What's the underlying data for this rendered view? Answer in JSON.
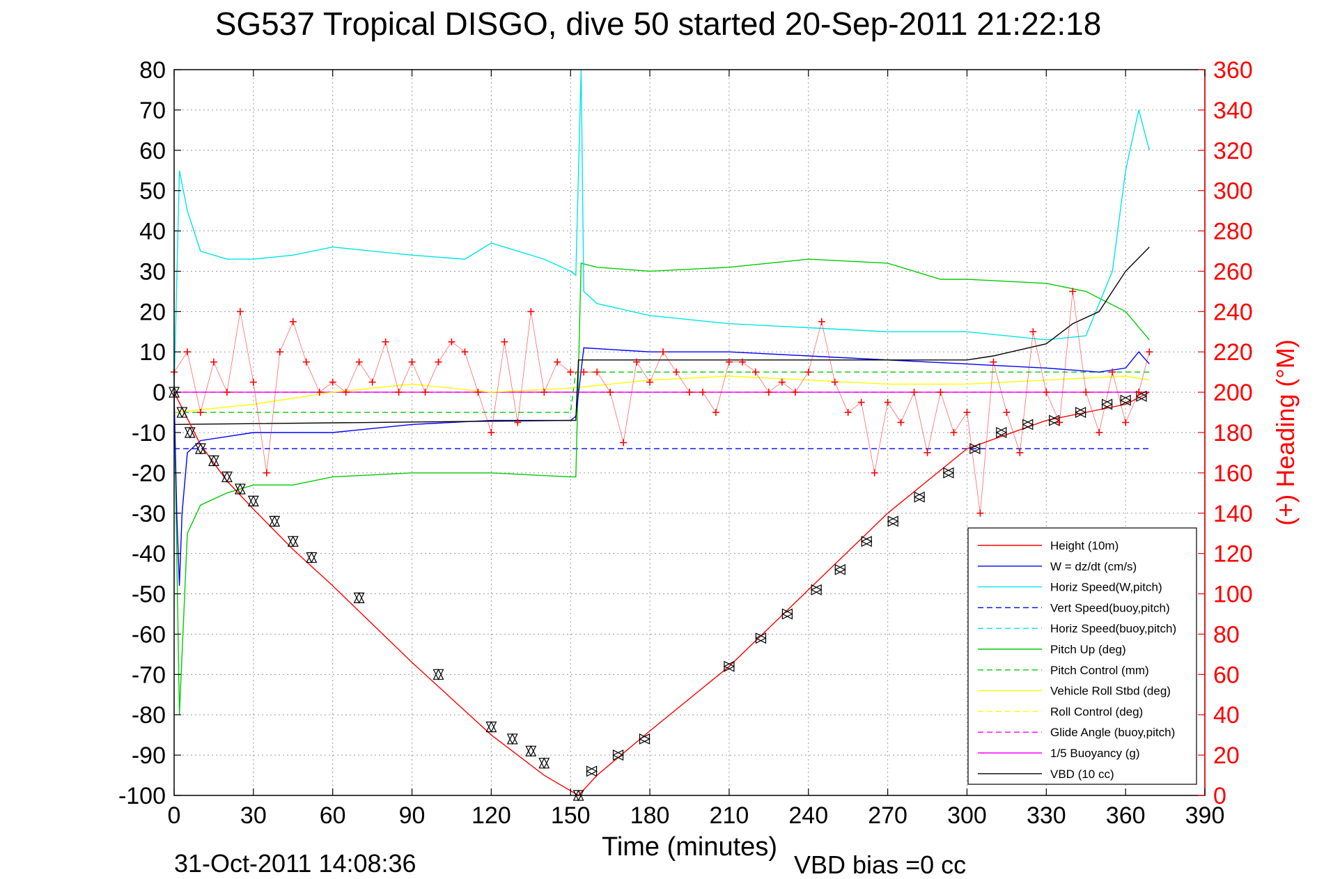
{
  "chart_data": {
    "type": "line",
    "title": "SG537 Tropical DISGO, dive 50 started 20-Sep-2011 21:22:18",
    "xlabel": "Time (minutes)",
    "ylabel_right": "(+) Heading (°M)",
    "footer_left": "31-Oct-2011 14:08:36",
    "footer_right": "VBD bias =0 cc",
    "xlim": [
      0,
      390
    ],
    "ylim": [
      -100,
      80
    ],
    "ylim_right": [
      0,
      360
    ],
    "xticks": [
      "0",
      "30",
      "60",
      "90",
      "120",
      "150",
      "180",
      "210",
      "240",
      "270",
      "300",
      "330",
      "360",
      "390"
    ],
    "yticks": [
      "80",
      "70",
      "60",
      "50",
      "40",
      "30",
      "20",
      "10",
      "0",
      "-10",
      "-20",
      "-30",
      "-40",
      "-50",
      "-60",
      "-70",
      "-80",
      "-90",
      "-100"
    ],
    "yticks_right": [
      "360",
      "340",
      "320",
      "300",
      "280",
      "260",
      "240",
      "220",
      "200",
      "180",
      "160",
      "140",
      "120",
      "100",
      "80",
      "60",
      "40",
      "20",
      "0"
    ],
    "grid": true,
    "legend_position": "bottom-right",
    "series": [
      {
        "name": "Height (10m)",
        "color": "#ff0000",
        "style": "solid",
        "x": [
          0,
          10,
          20,
          30,
          45,
          60,
          90,
          120,
          140,
          153,
          160,
          180,
          210,
          240,
          270,
          300,
          330,
          360,
          369
        ],
        "y": [
          0,
          -13,
          -22,
          -29,
          -39,
          -48,
          -67,
          -85,
          -95,
          -100,
          -95,
          -84,
          -68,
          -49,
          -30,
          -14,
          -7,
          -3,
          0
        ]
      },
      {
        "name": "W = dz/dt (cm/s)",
        "color": "#0000ff",
        "style": "solid",
        "x": [
          0,
          1,
          2,
          3,
          5,
          10,
          20,
          30,
          60,
          90,
          120,
          150,
          152,
          155,
          180,
          210,
          240,
          270,
          300,
          330,
          350,
          360,
          365,
          369
        ],
        "y": [
          0,
          -30,
          -48,
          -30,
          -15,
          -12,
          -11,
          -10,
          -10,
          -8,
          -7,
          -7,
          -6,
          11,
          10,
          10,
          9,
          8,
          7,
          6,
          5,
          6,
          10,
          7
        ]
      },
      {
        "name": "Horiz Speed(W,pitch)",
        "color": "#00e5e5",
        "style": "solid",
        "x": [
          0,
          2,
          5,
          10,
          20,
          30,
          45,
          60,
          90,
          110,
          120,
          140,
          150,
          152,
          154,
          155,
          160,
          180,
          210,
          240,
          270,
          300,
          330,
          345,
          355,
          360,
          365,
          369
        ],
        "y": [
          0,
          55,
          45,
          35,
          33,
          33,
          34,
          36,
          34,
          33,
          37,
          33,
          30,
          29,
          80,
          25,
          22,
          19,
          17,
          16,
          15,
          15,
          13,
          14,
          30,
          55,
          70,
          60
        ]
      },
      {
        "name": "Vert Speed(buoy,pitch)",
        "color": "#0000ff",
        "style": "dashed",
        "x": [
          0,
          150,
          152,
          369
        ],
        "y": [
          -14,
          -14,
          -14,
          -14
        ]
      },
      {
        "name": "Horiz Speed(buoy,pitch)",
        "color": "#00e5e5",
        "style": "dashed",
        "x": [
          0,
          369
        ],
        "y": [
          0,
          0
        ]
      },
      {
        "name": "Pitch Up (deg)",
        "color": "#00cc00",
        "style": "solid",
        "x": [
          0,
          2,
          5,
          10,
          20,
          30,
          45,
          60,
          90,
          120,
          150,
          152,
          154,
          160,
          180,
          210,
          240,
          270,
          290,
          300,
          330,
          345,
          360,
          369
        ],
        "y": [
          0,
          -80,
          -35,
          -28,
          -25,
          -23,
          -23,
          -21,
          -20,
          -20,
          -21,
          -21,
          32,
          31,
          30,
          31,
          33,
          32,
          28,
          28,
          27,
          25,
          20,
          13
        ]
      },
      {
        "name": "Pitch Control (mm)",
        "color": "#00cc00",
        "style": "dashed",
        "x": [
          0,
          150,
          152,
          369
        ],
        "y": [
          -5,
          -5,
          5,
          5
        ]
      },
      {
        "name": "Vehicle Roll Stbd (deg)",
        "color": "#ffff00",
        "style": "solid",
        "x": [
          0,
          30,
          60,
          90,
          120,
          150,
          180,
          210,
          240,
          270,
          300,
          330,
          360,
          369
        ],
        "y": [
          -5,
          -3,
          0,
          2,
          0,
          1,
          3,
          4,
          3,
          2,
          2,
          3,
          4,
          3
        ]
      },
      {
        "name": "Roll Control (deg)",
        "color": "#ffff00",
        "style": "dashed",
        "x": [
          0,
          369
        ],
        "y": [
          0,
          0
        ]
      },
      {
        "name": "Glide Angle (buoy,pitch)",
        "color": "#ff00ff",
        "style": "dashed",
        "x": [
          0,
          369
        ],
        "y": [
          0,
          0
        ]
      },
      {
        "name": "1/5 Buoyancy (g)",
        "color": "#ff00ff",
        "style": "solid",
        "x": [
          0,
          369
        ],
        "y": [
          0,
          0
        ]
      },
      {
        "name": "VBD (10 cc)",
        "color": "#000000",
        "style": "solid",
        "x": [
          0,
          150,
          152,
          153,
          300,
          310,
          330,
          340,
          350,
          360,
          369
        ],
        "y": [
          -8,
          -7,
          -7,
          8,
          8,
          9,
          12,
          17,
          20,
          30,
          36
        ]
      }
    ],
    "heading": {
      "color": "#ff0000",
      "marker": "+",
      "axis": "right",
      "x": [
        0,
        5,
        10,
        15,
        20,
        25,
        30,
        35,
        40,
        45,
        50,
        55,
        60,
        65,
        70,
        75,
        80,
        85,
        90,
        95,
        100,
        105,
        110,
        115,
        120,
        125,
        130,
        135,
        140,
        145,
        150,
        155,
        160,
        165,
        170,
        175,
        180,
        185,
        190,
        195,
        200,
        205,
        210,
        215,
        220,
        225,
        230,
        235,
        240,
        245,
        250,
        255,
        260,
        265,
        270,
        275,
        280,
        285,
        290,
        295,
        300,
        305,
        310,
        315,
        320,
        325,
        330,
        335,
        340,
        345,
        350,
        355,
        360,
        365,
        369
      ],
      "y": [
        210,
        220,
        190,
        215,
        200,
        240,
        205,
        160,
        220,
        235,
        215,
        200,
        205,
        200,
        215,
        205,
        225,
        200,
        215,
        200,
        215,
        225,
        220,
        200,
        180,
        225,
        185,
        240,
        200,
        215,
        210,
        210,
        210,
        200,
        175,
        215,
        205,
        220,
        210,
        200,
        200,
        190,
        215,
        215,
        210,
        200,
        205,
        200,
        210,
        235,
        205,
        190,
        195,
        160,
        195,
        185,
        200,
        170,
        200,
        180,
        190,
        140,
        215,
        190,
        170,
        230,
        200,
        185,
        250,
        200,
        180,
        210,
        185,
        200,
        220
      ]
    },
    "descent_markers": {
      "x": [
        0,
        3,
        6,
        10,
        15,
        20,
        25,
        30,
        38,
        45,
        52,
        70,
        100,
        120,
        128,
        135,
        140,
        153
      ],
      "y": [
        0,
        -5,
        -10,
        -14,
        -17,
        -21,
        -24,
        -27,
        -32,
        -37,
        -41,
        -51,
        -70,
        -83,
        -86,
        -89,
        -92,
        -100
      ]
    },
    "ascent_markers": {
      "x": [
        158,
        168,
        178,
        210,
        222,
        232,
        243,
        252,
        262,
        272,
        282,
        293,
        303,
        313,
        323,
        333,
        343,
        353,
        360,
        366
      ],
      "y": [
        -94,
        -90,
        -86,
        -68,
        -61,
        -55,
        -49,
        -44,
        -37,
        -32,
        -26,
        -20,
        -14,
        -10,
        -8,
        -7,
        -5,
        -3,
        -2,
        -1
      ]
    }
  }
}
